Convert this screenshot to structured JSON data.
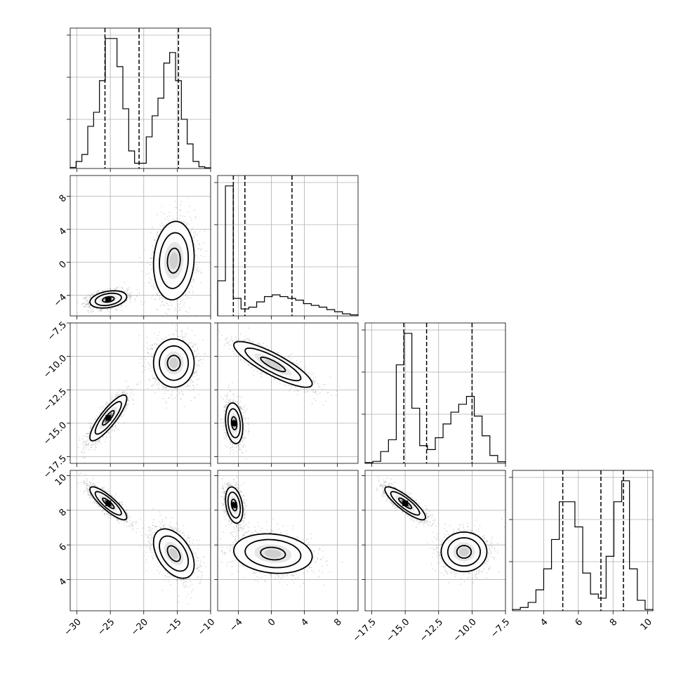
{
  "chart_data": {
    "type": "corner",
    "title": "",
    "parameters": [
      {
        "index": 0,
        "range": [
          -31,
          -10
        ],
        "ticks": [
          -30,
          -25,
          -20,
          -15,
          -10
        ],
        "quantiles": [
          -25.8,
          -20.7,
          -14.8
        ],
        "hist_values": [
          0.3,
          2,
          4,
          12,
          16,
          25,
          37,
          37,
          29,
          17,
          5,
          1.5,
          1.5,
          9,
          15,
          20,
          30,
          33,
          25,
          14,
          7,
          2,
          0.5,
          0.2
        ],
        "modes": [
          {
            "mean": -25.3,
            "sd": 1.45
          },
          {
            "mean": -15.5,
            "sd": 2.3
          }
        ]
      },
      {
        "index": 1,
        "range": [
          -6.5,
          10.5
        ],
        "ticks": [
          -4,
          0,
          4,
          8
        ],
        "quantiles": [
          -4.6,
          -3.2,
          2.5
        ],
        "hist_values": [
          10,
          37,
          5,
          2,
          2.5,
          4,
          5.5,
          6,
          5.5,
          5,
          4.5,
          3.5,
          3,
          2.5,
          1.8,
          1.2,
          0.6,
          0.3
        ],
        "modes": [
          {
            "mean": -4.5,
            "sd": 0.55
          },
          {
            "mean": 0.2,
            "sd": 2.5
          }
        ]
      },
      {
        "index": 2,
        "range": [
          -18,
          -7.5
        ],
        "ticks": [
          -17.5,
          -15.0,
          -12.5,
          -10.0,
          -7.5
        ],
        "quantiles": [
          -15.1,
          -13.4,
          -10.0
        ],
        "hist_values": [
          0.2,
          0.5,
          3,
          6,
          25,
          33,
          14,
          4.5,
          3.5,
          6.5,
          10,
          13,
          15,
          17,
          12,
          7,
          2,
          0.4
        ],
        "modes": [
          {
            "mean": -15.0,
            "sd": 0.8
          },
          {
            "mean": -10.6,
            "sd": 0.9
          }
        ]
      },
      {
        "index": 3,
        "range": [
          2.2,
          10.3
        ],
        "ticks": [
          4,
          6,
          8,
          10
        ],
        "quantiles": [
          5.1,
          7.3,
          8.6
        ],
        "hist_values": [
          0.3,
          0.8,
          2,
          5,
          10,
          17,
          26,
          26,
          20,
          9,
          4,
          3,
          13,
          26,
          31,
          10,
          2.5,
          0.3
        ],
        "modes": [
          {
            "mean": 8.3,
            "sd": 0.5
          },
          {
            "mean": 5.6,
            "sd": 0.7
          }
        ]
      }
    ],
    "pair_modes": [
      {
        "x": 0,
        "y": 1,
        "modes": [
          {
            "mean": [
              -25.3,
              -4.5
            ],
            "sd": [
              1.45,
              0.55
            ],
            "rho": 0.3
          },
          {
            "mean": [
              -15.5,
              0.2
            ],
            "sd": [
              1.6,
              2.5
            ],
            "rho": 0.1
          }
        ]
      },
      {
        "x": 0,
        "y": 2,
        "modes": [
          {
            "mean": [
              -25.3,
              -14.6
            ],
            "sd": [
              1.45,
              0.9
            ],
            "rho": 0.85
          },
          {
            "mean": [
              -15.5,
              -10.5
            ],
            "sd": [
              1.6,
              0.95
            ],
            "rho": 0.0
          }
        ]
      },
      {
        "x": 1,
        "y": 2,
        "modes": [
          {
            "mean": [
              -4.5,
              -15.0
            ],
            "sd": [
              0.55,
              0.8
            ],
            "rho": -0.2
          },
          {
            "mean": [
              0.2,
              -10.6
            ],
            "sd": [
              2.5,
              0.9
            ],
            "rho": -0.85
          }
        ]
      },
      {
        "x": 0,
        "y": 3,
        "modes": [
          {
            "mean": [
              -25.3,
              8.4
            ],
            "sd": [
              1.45,
              0.5
            ],
            "rho": -0.85
          },
          {
            "mean": [
              -15.5,
              5.5
            ],
            "sd": [
              1.6,
              0.75
            ],
            "rho": -0.45
          }
        ]
      },
      {
        "x": 1,
        "y": 3,
        "modes": [
          {
            "mean": [
              -4.5,
              8.3
            ],
            "sd": [
              0.55,
              0.55
            ],
            "rho": -0.3
          },
          {
            "mean": [
              0.2,
              5.5
            ],
            "sd": [
              2.5,
              0.6
            ],
            "rho": -0.15
          }
        ]
      },
      {
        "x": 2,
        "y": 3,
        "modes": [
          {
            "mean": [
              -15.0,
              8.4
            ],
            "sd": [
              0.8,
              0.5
            ],
            "rho": -0.85
          },
          {
            "mean": [
              -10.6,
              5.6
            ],
            "sd": [
              0.9,
              0.6
            ],
            "rho": 0.0
          }
        ]
      }
    ],
    "contour_levels_sigma": [
      0.5,
      1.0,
      1.5
    ],
    "grid": true,
    "legend": "none",
    "colors": {
      "line": "#000000",
      "grid": "#b0b0b0",
      "scatter": "#9a9a9a",
      "background": "#ffffff"
    }
  }
}
